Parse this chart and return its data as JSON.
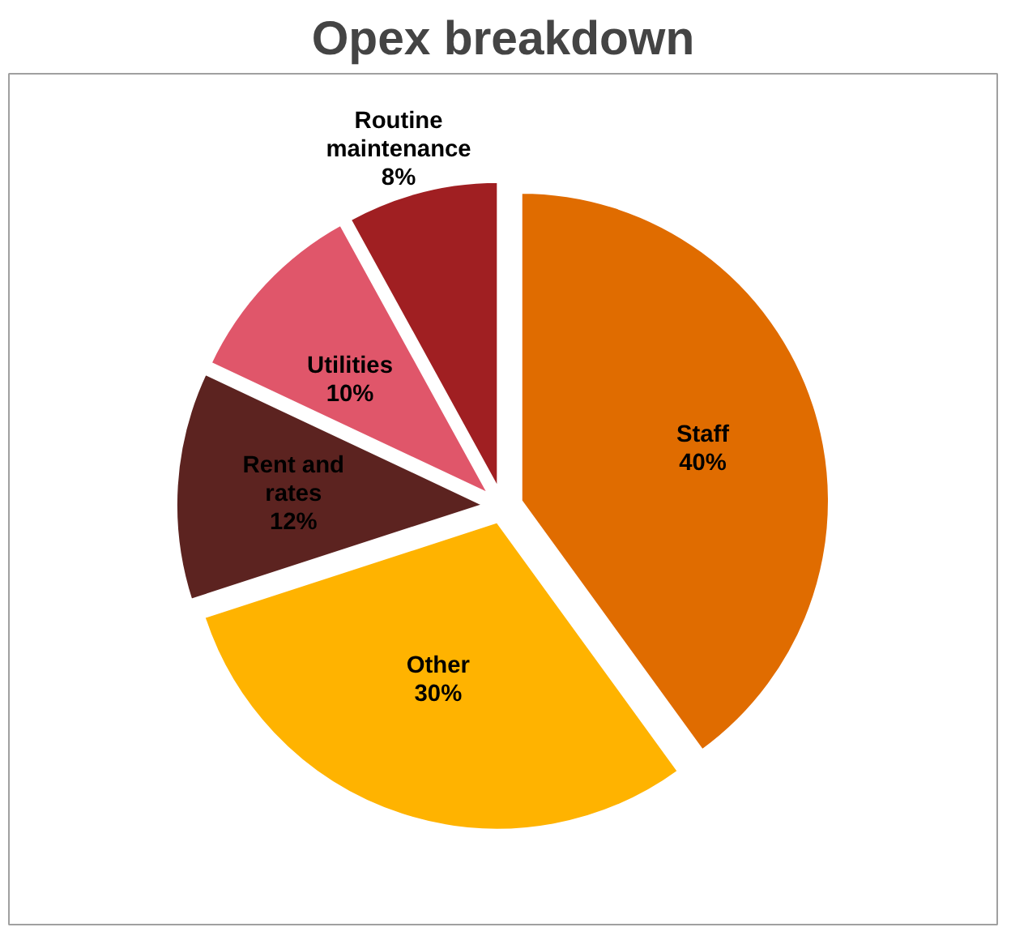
{
  "chart_data": {
    "type": "pie",
    "title": "Opex breakdown",
    "categories": [
      "Staff",
      "Other",
      "Rent and rates",
      "Utilities",
      "Routine maintenance"
    ],
    "values": [
      40,
      30,
      12,
      10,
      8
    ],
    "colors": [
      "#e06c00",
      "#ffb300",
      "#5c2320",
      "#e0566a",
      "#a01f22"
    ],
    "value_labels": [
      "40%",
      "30%",
      "12%",
      "10%",
      "8%"
    ]
  }
}
